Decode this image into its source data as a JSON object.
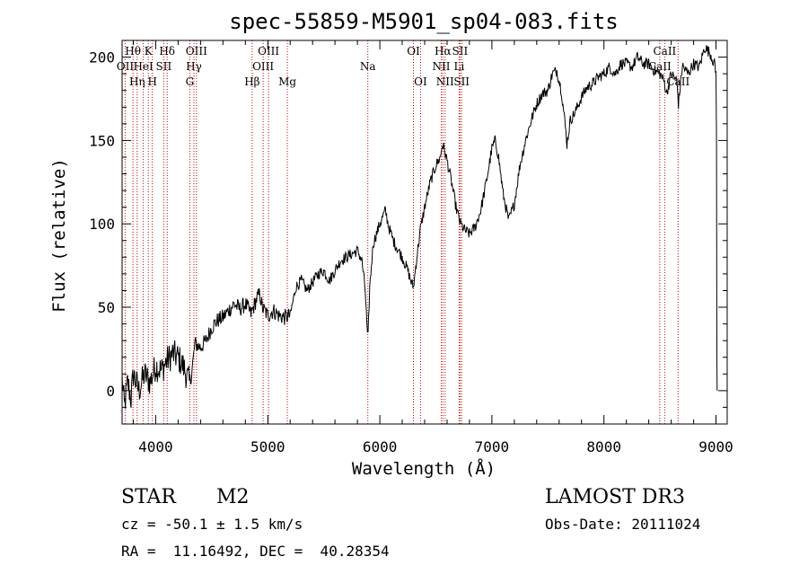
{
  "chart_data": {
    "type": "line",
    "title": "spec-55859-M5901_sp04-083.fits",
    "xlabel": "Wavelength (Å)",
    "ylabel": "Flux (relative)",
    "xlim": [
      3700,
      9100
    ],
    "ylim": [
      -20,
      210
    ],
    "xticks": [
      4000,
      5000,
      6000,
      7000,
      8000,
      9000
    ],
    "yticks": [
      0,
      50,
      100,
      150,
      200
    ],
    "spectrum_anchors": [
      [
        3700,
        8
      ],
      [
        3720,
        -10
      ],
      [
        3750,
        5
      ],
      [
        3780,
        -5
      ],
      [
        3800,
        10
      ],
      [
        3850,
        0
      ],
      [
        3900,
        10
      ],
      [
        3950,
        5
      ],
      [
        4000,
        15
      ],
      [
        4050,
        12
      ],
      [
        4100,
        18
      ],
      [
        4150,
        22
      ],
      [
        4200,
        20
      ],
      [
        4250,
        14
      ],
      [
        4300,
        5
      ],
      [
        4320,
        10
      ],
      [
        4350,
        28
      ],
      [
        4400,
        26
      ],
      [
        4450,
        30
      ],
      [
        4500,
        38
      ],
      [
        4550,
        42
      ],
      [
        4600,
        44
      ],
      [
        4650,
        48
      ],
      [
        4700,
        52
      ],
      [
        4750,
        49
      ],
      [
        4800,
        52
      ],
      [
        4850,
        46
      ],
      [
        4900,
        55
      ],
      [
        4930,
        58
      ],
      [
        4950,
        50
      ],
      [
        5000,
        45
      ],
      [
        5050,
        48
      ],
      [
        5100,
        45
      ],
      [
        5150,
        44
      ],
      [
        5200,
        45
      ],
      [
        5250,
        62
      ],
      [
        5300,
        66
      ],
      [
        5350,
        60
      ],
      [
        5400,
        65
      ],
      [
        5450,
        70
      ],
      [
        5500,
        72
      ],
      [
        5550,
        66
      ],
      [
        5600,
        72
      ],
      [
        5650,
        78
      ],
      [
        5700,
        80
      ],
      [
        5750,
        82
      ],
      [
        5800,
        84
      ],
      [
        5840,
        78
      ],
      [
        5870,
        60
      ],
      [
        5893,
        28
      ],
      [
        5910,
        62
      ],
      [
        5940,
        88
      ],
      [
        6000,
        100
      ],
      [
        6050,
        108
      ],
      [
        6080,
        98
      ],
      [
        6120,
        90
      ],
      [
        6150,
        86
      ],
      [
        6200,
        80
      ],
      [
        6250,
        72
      ],
      [
        6280,
        65
      ],
      [
        6300,
        62
      ],
      [
        6330,
        80
      ],
      [
        6360,
        96
      ],
      [
        6400,
        110
      ],
      [
        6450,
        125
      ],
      [
        6500,
        135
      ],
      [
        6540,
        140
      ],
      [
        6560,
        148
      ],
      [
        6600,
        138
      ],
      [
        6640,
        125
      ],
      [
        6680,
        110
      ],
      [
        6720,
        100
      ],
      [
        6760,
        96
      ],
      [
        6800,
        94
      ],
      [
        6850,
        98
      ],
      [
        6900,
        108
      ],
      [
        6950,
        125
      ],
      [
        7000,
        145
      ],
      [
        7030,
        150
      ],
      [
        7060,
        140
      ],
      [
        7100,
        118
      ],
      [
        7150,
        102
      ],
      [
        7200,
        112
      ],
      [
        7250,
        135
      ],
      [
        7300,
        150
      ],
      [
        7350,
        162
      ],
      [
        7400,
        172
      ],
      [
        7450,
        178
      ],
      [
        7500,
        180
      ],
      [
        7540,
        190
      ],
      [
        7580,
        192
      ],
      [
        7620,
        180
      ],
      [
        7650,
        162
      ],
      [
        7670,
        148
      ],
      [
        7700,
        162
      ],
      [
        7750,
        168
      ],
      [
        7800,
        176
      ],
      [
        7850,
        182
      ],
      [
        7900,
        184
      ],
      [
        7950,
        188
      ],
      [
        8000,
        190
      ],
      [
        8050,
        194
      ],
      [
        8100,
        190
      ],
      [
        8150,
        196
      ],
      [
        8200,
        196
      ],
      [
        8250,
        194
      ],
      [
        8300,
        200
      ],
      [
        8350,
        196
      ],
      [
        8400,
        196
      ],
      [
        8450,
        192
      ],
      [
        8500,
        190
      ],
      [
        8540,
        185
      ],
      [
        8560,
        178
      ],
      [
        8600,
        190
      ],
      [
        8650,
        186
      ],
      [
        8665,
        172
      ],
      [
        8700,
        195
      ],
      [
        8750,
        190
      ],
      [
        8800,
        196
      ],
      [
        8850,
        194
      ],
      [
        8900,
        206
      ],
      [
        8950,
        202
      ],
      [
        8990,
        195
      ],
      [
        9000,
        190
      ]
    ],
    "lines": [
      {
        "wave": 3727,
        "label": "OII",
        "row": 1
      },
      {
        "wave": 3797,
        "label": "Hθ",
        "row": 0
      },
      {
        "wave": 3835,
        "label": "Hη",
        "row": 2
      },
      {
        "wave": 3889,
        "label": "HeI",
        "row": 1
      },
      {
        "wave": 3934,
        "label": "K",
        "row": 0
      },
      {
        "wave": 3970,
        "label": "H",
        "row": 2
      },
      {
        "wave": 4072,
        "label": "SII",
        "row": 1
      },
      {
        "wave": 4102,
        "label": "Hδ",
        "row": 0
      },
      {
        "wave": 4304,
        "label": "G",
        "row": 2
      },
      {
        "wave": 4341,
        "label": "Hγ",
        "row": 1
      },
      {
        "wave": 4363,
        "label": "OIII",
        "row": 0
      },
      {
        "wave": 4861,
        "label": "Hβ",
        "row": 2
      },
      {
        "wave": 4959,
        "label": "OIII",
        "row": 1
      },
      {
        "wave": 5007,
        "label": "OIII",
        "row": 0
      },
      {
        "wave": 5175,
        "label": "Mg",
        "row": 2
      },
      {
        "wave": 5893,
        "label": "Na",
        "row": 1
      },
      {
        "wave": 6300,
        "label": "OI",
        "row": 0
      },
      {
        "wave": 6363,
        "label": "OI",
        "row": 2
      },
      {
        "wave": 6548,
        "label": "NII",
        "row": 1
      },
      {
        "wave": 6563,
        "label": "Hα",
        "row": 0
      },
      {
        "wave": 6583,
        "label": "NII",
        "row": 2
      },
      {
        "wave": 6708,
        "label": "Li",
        "row": 1
      },
      {
        "wave": 6716,
        "label": "SII",
        "row": 0
      },
      {
        "wave": 6730,
        "label": "SII",
        "row": 2
      },
      {
        "wave": 8498,
        "label": "CaII",
        "row": 1
      },
      {
        "wave": 8542,
        "label": "CaII",
        "row": 0
      },
      {
        "wave": 8662,
        "label": "CaII",
        "row": 2
      }
    ]
  },
  "info": {
    "object_class": "STAR",
    "subclass": "M2",
    "survey": "LAMOST DR3",
    "cz": "cz = -50.1 ± 1.5 km/s",
    "obs_date": "Obs-Date: 20111024",
    "coords": "RA =  11.16492, DEC =  40.28354"
  }
}
